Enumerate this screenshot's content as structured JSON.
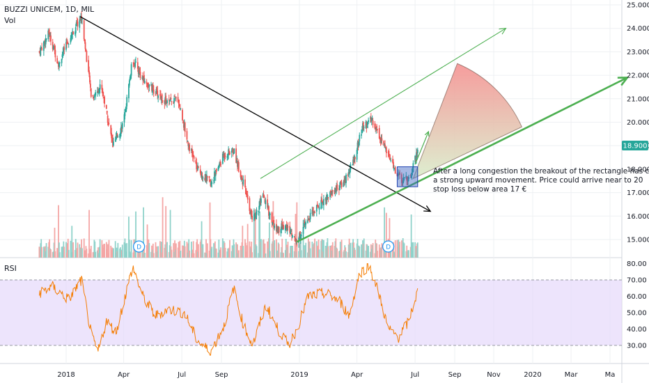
{
  "header": {
    "symbol": "BUZZI UNICEM, 1D, MIL",
    "volume_label": "Vol",
    "rsi_label": "RSI"
  },
  "price_axis": {
    "ticks": [
      "25.000",
      "24.000",
      "23.000",
      "22.000",
      "21.000",
      "20.000",
      "19.000",
      "18.000",
      "17.000",
      "16.000",
      "15.000"
    ],
    "current": "18.900"
  },
  "rsi_axis": {
    "ticks": [
      "80.00",
      "70.00",
      "60.00",
      "50.00",
      "40.00",
      "30.00"
    ]
  },
  "time_axis": {
    "ticks": [
      "2018",
      "Apr",
      "Jul",
      "Sep",
      "2019",
      "Apr",
      "Jul",
      "Sep",
      "Nov",
      "2020",
      "Mar",
      "Ma"
    ]
  },
  "dividend_marker": "D",
  "annotation": {
    "line1": "After a long congestion the breakout of the rectangle has c",
    "line2": "a strong upward movement. Price could arrive  near to 20",
    "line3": "stop loss below area 17 €"
  },
  "colors": {
    "up": "#26a69a",
    "down": "#ef5350",
    "trendline_down": "#000000",
    "channel": "#4caf50",
    "rsi_line": "#f57c00",
    "rsi_band": "#e6d9fb",
    "rectangle": "#3f67c6",
    "fan": "#f48b8b",
    "price_badge": "#26a69a"
  },
  "chart_data": {
    "type": "candlestick",
    "title": "BUZZI UNICEM, 1D, MIL",
    "ylim": [
      14.5,
      25.1
    ],
    "rsi_ylim": [
      23,
      81
    ],
    "rsi_band": [
      30,
      70
    ],
    "last_price": 18.9,
    "close_path": [
      {
        "date": "2017-11-20",
        "price": 23.0
      },
      {
        "date": "2017-12-05",
        "price": 23.8
      },
      {
        "date": "2017-12-20",
        "price": 22.5
      },
      {
        "date": "2018-01-05",
        "price": 23.5
      },
      {
        "date": "2018-01-25",
        "price": 24.5
      },
      {
        "date": "2018-02-10",
        "price": 21.0
      },
      {
        "date": "2018-02-25",
        "price": 21.6
      },
      {
        "date": "2018-03-15",
        "price": 19.0
      },
      {
        "date": "2018-04-01",
        "price": 20.0
      },
      {
        "date": "2018-04-15",
        "price": 22.7
      },
      {
        "date": "2018-05-01",
        "price": 21.8
      },
      {
        "date": "2018-05-20",
        "price": 21.3
      },
      {
        "date": "2018-06-10",
        "price": 20.8
      },
      {
        "date": "2018-06-25",
        "price": 21.0
      },
      {
        "date": "2018-07-10",
        "price": 19.2
      },
      {
        "date": "2018-07-25",
        "price": 18.0
      },
      {
        "date": "2018-08-15",
        "price": 17.4
      },
      {
        "date": "2018-09-05",
        "price": 18.6
      },
      {
        "date": "2018-09-20",
        "price": 18.8
      },
      {
        "date": "2018-10-05",
        "price": 17.4
      },
      {
        "date": "2018-10-20",
        "price": 15.8
      },
      {
        "date": "2018-11-05",
        "price": 16.8
      },
      {
        "date": "2018-11-25",
        "price": 15.4
      },
      {
        "date": "2018-12-10",
        "price": 15.6
      },
      {
        "date": "2018-12-28",
        "price": 14.95
      },
      {
        "date": "2019-01-15",
        "price": 15.9
      },
      {
        "date": "2019-02-01",
        "price": 16.5
      },
      {
        "date": "2019-02-20",
        "price": 17.0
      },
      {
        "date": "2019-03-10",
        "price": 17.4
      },
      {
        "date": "2019-03-25",
        "price": 18.2
      },
      {
        "date": "2019-04-10",
        "price": 19.8
      },
      {
        "date": "2019-04-25",
        "price": 20.1
      },
      {
        "date": "2019-05-10",
        "price": 19.2
      },
      {
        "date": "2019-05-25",
        "price": 18.2
      },
      {
        "date": "2019-06-10",
        "price": 17.5
      },
      {
        "date": "2019-06-25",
        "price": 17.8
      },
      {
        "date": "2019-07-05",
        "price": 18.9
      }
    ],
    "rsi_path": [
      {
        "date": "2017-11-20",
        "value": 62
      },
      {
        "date": "2017-12-10",
        "value": 66
      },
      {
        "date": "2018-01-05",
        "value": 58
      },
      {
        "date": "2018-01-25",
        "value": 70
      },
      {
        "date": "2018-02-10",
        "value": 35
      },
      {
        "date": "2018-02-20",
        "value": 26
      },
      {
        "date": "2018-03-05",
        "value": 45
      },
      {
        "date": "2018-03-20",
        "value": 38
      },
      {
        "date": "2018-04-15",
        "value": 78
      },
      {
        "date": "2018-05-01",
        "value": 60
      },
      {
        "date": "2018-05-20",
        "value": 48
      },
      {
        "date": "2018-06-10",
        "value": 52
      },
      {
        "date": "2018-07-05",
        "value": 50
      },
      {
        "date": "2018-07-25",
        "value": 33
      },
      {
        "date": "2018-08-15",
        "value": 26
      },
      {
        "date": "2018-09-05",
        "value": 42
      },
      {
        "date": "2018-09-20",
        "value": 65
      },
      {
        "date": "2018-10-05",
        "value": 43
      },
      {
        "date": "2018-10-20",
        "value": 30
      },
      {
        "date": "2018-11-10",
        "value": 55
      },
      {
        "date": "2018-11-25",
        "value": 42
      },
      {
        "date": "2018-12-15",
        "value": 30
      },
      {
        "date": "2018-12-28",
        "value": 40
      },
      {
        "date": "2019-01-15",
        "value": 60
      },
      {
        "date": "2019-02-10",
        "value": 62
      },
      {
        "date": "2019-03-05",
        "value": 57
      },
      {
        "date": "2019-03-20",
        "value": 48
      },
      {
        "date": "2019-04-05",
        "value": 74
      },
      {
        "date": "2019-04-20",
        "value": 79
      },
      {
        "date": "2019-05-05",
        "value": 62
      },
      {
        "date": "2019-05-20",
        "value": 40
      },
      {
        "date": "2019-06-05",
        "value": 35
      },
      {
        "date": "2019-06-20",
        "value": 44
      },
      {
        "date": "2019-07-05",
        "value": 63
      }
    ],
    "drawings": {
      "downtrend_line": [
        {
          "date": "2018-01-23",
          "price": 24.5
        },
        {
          "date": "2019-07-25",
          "price": 16.2
        }
      ],
      "channel_upper": [
        {
          "date": "2018-11-01",
          "price": 17.6
        },
        {
          "date": "2019-11-20",
          "price": 24.0
        }
      ],
      "channel_lower": [
        {
          "date": "2018-12-28",
          "price": 14.9
        },
        {
          "date": "2020-05-28",
          "price": 21.9
        }
      ],
      "rectangle": {
        "start": "2019-06-03",
        "end": "2019-07-05",
        "low": 17.25,
        "high": 18.1
      },
      "projection_arrow": [
        {
          "date": "2019-07-01",
          "price": 18.2
        },
        {
          "date": "2019-07-22",
          "price": 19.6
        }
      ],
      "fan": {
        "origin_date": "2019-06-28",
        "origin_price": 17.6,
        "upper_date": "2019-09-05",
        "upper_price": 22.5,
        "lower_date": "2019-12-15",
        "lower_price": 19.8
      }
    }
  }
}
